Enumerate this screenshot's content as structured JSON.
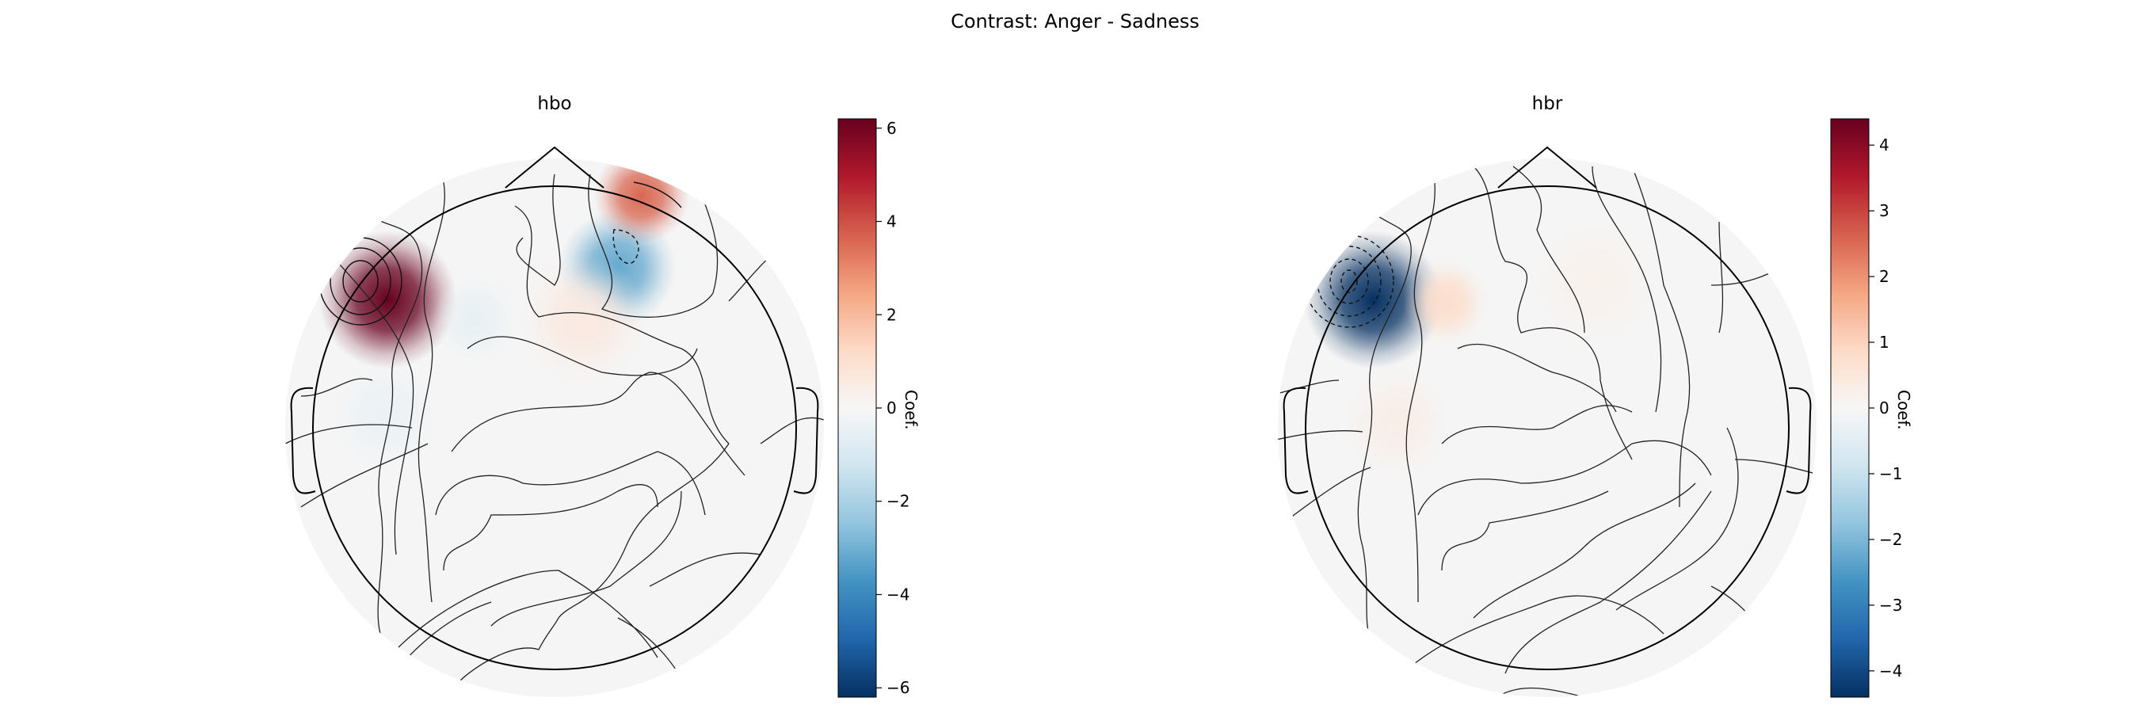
{
  "figure": {
    "title": "Contrast: Anger - Sadness"
  },
  "chart_data": [
    {
      "type": "heatmap",
      "title": "hbo",
      "colorbar": {
        "label": "Coef.",
        "ticks": [
          -6,
          -4,
          -2,
          0,
          2,
          4,
          6
        ],
        "range": [
          -6.2,
          6.2
        ],
        "colormap": "RdBu_r"
      },
      "blobs": [
        {
          "u": -0.69,
          "v": 0.53,
          "value": 7.5,
          "sigma": 0.13
        },
        {
          "u": 0.26,
          "v": 0.66,
          "value": -3.2,
          "sigma": 0.11
        },
        {
          "u": 0.36,
          "v": 0.96,
          "value": 3.6,
          "sigma": 0.09
        },
        {
          "u": 0.12,
          "v": 0.45,
          "value": 0.6,
          "sigma": 0.12
        },
        {
          "u": -0.33,
          "v": 0.45,
          "value": -0.5,
          "sigma": 0.08
        },
        {
          "u": -0.7,
          "v": 0.05,
          "value": -0.4,
          "sigma": 0.1
        }
      ]
    },
    {
      "type": "heatmap",
      "title": "hbr",
      "colorbar": {
        "label": "Coef.",
        "ticks": [
          -4,
          -3,
          -2,
          -1,
          0,
          1,
          2,
          3,
          4
        ],
        "range": [
          -4.4,
          4.4
        ],
        "colormap": "RdBu_r"
      },
      "blobs": [
        {
          "u": -0.72,
          "v": 0.53,
          "value": -5.5,
          "sigma": 0.13
        },
        {
          "u": -0.42,
          "v": 0.52,
          "value": 0.8,
          "sigma": 0.08
        },
        {
          "u": -0.62,
          "v": 0.02,
          "value": 0.3,
          "sigma": 0.1
        },
        {
          "u": 0.2,
          "v": 0.6,
          "value": 0.2,
          "sigma": 0.12
        }
      ]
    }
  ]
}
